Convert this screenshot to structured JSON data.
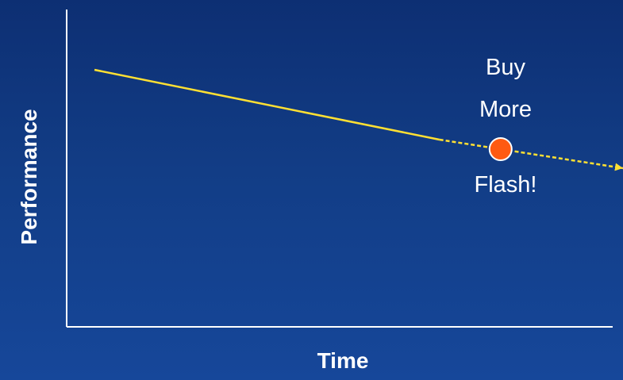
{
  "chart_data": {
    "type": "line",
    "xlabel": "Time",
    "ylabel": "Performance",
    "xlim": [
      0,
      100
    ],
    "ylim": [
      0,
      100
    ],
    "grid": false,
    "series": [
      {
        "style": "solid",
        "color": "#ffe033",
        "points": [
          [
            5,
            81
          ],
          [
            67,
            59
          ]
        ]
      },
      {
        "style": "dashed",
        "color": "#ffe033",
        "arrow": true,
        "points": [
          [
            67,
            59
          ],
          [
            100,
            50
          ]
        ]
      }
    ],
    "marker": {
      "x": 78,
      "y": 56,
      "color": "#ff5a12"
    },
    "annotation": {
      "lines": [
        "Buy",
        "More",
        "Flash!"
      ]
    }
  }
}
